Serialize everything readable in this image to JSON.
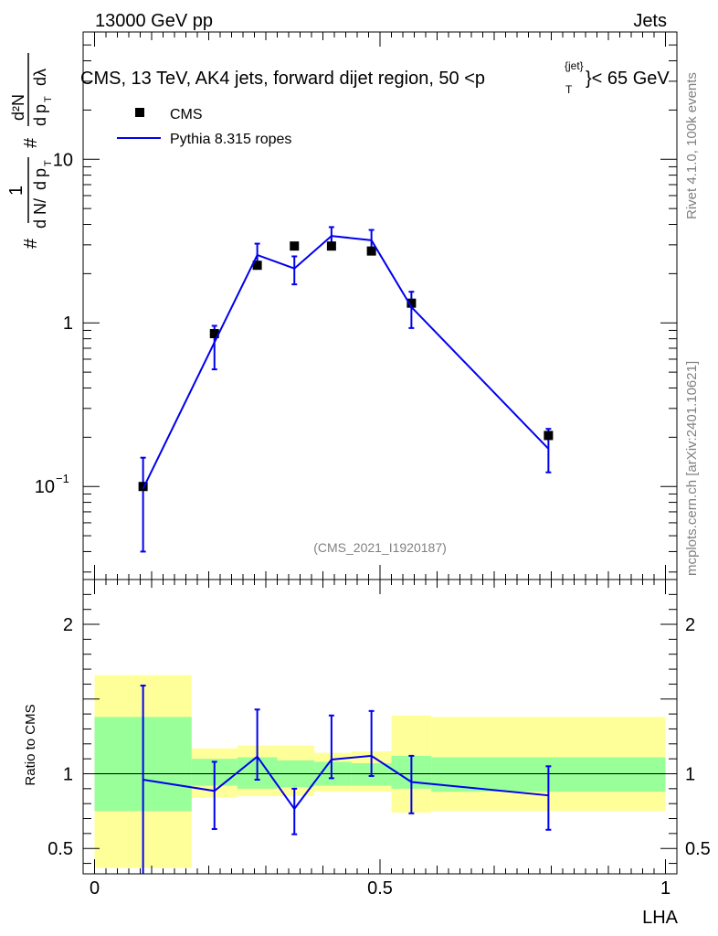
{
  "header": {
    "energy_label": "13000 GeV pp",
    "category_label": "Jets"
  },
  "side_labels": {
    "rivet": "Rivet 4.1.0,  100k events",
    "source": "mcplots.cern.ch [arXiv:2401.10621]"
  },
  "axis_symbols": {
    "hash": "#",
    "one": "1",
    "dN": "d N",
    "slash": "/",
    "d": "d",
    "p": "p",
    "T": "T",
    "d2N": "d²N",
    "dlambda": "dλ"
  },
  "chart_data": {
    "type": "line",
    "title": "CMS, 13 TeV, AK4 jets, forward dijet region, 50 <p_T^{jet}< 65 GeV",
    "title_parts": {
      "main": "CMS, 13 TeV, AK4 jets, forward dijet region, 50 <p",
      "sub": "T",
      "sup": "{jet}",
      "tail": "}< 65 GeV"
    },
    "analysis_id": "(CMS_2021_I1920187)",
    "xlabel": "LHA",
    "xlim": [
      -0.02,
      1.02
    ],
    "x_ticks": [
      {
        "value": 0,
        "label": "0"
      },
      {
        "value": 0.5,
        "label": "0.5"
      },
      {
        "value": 1,
        "label": "1"
      }
    ],
    "main": {
      "yscale": "log",
      "ylim": [
        0.027,
        60
      ],
      "y_ticks": [
        {
          "value": 0.1,
          "label": "10",
          "exp": "−1"
        },
        {
          "value": 1,
          "label": "1",
          "exp": ""
        },
        {
          "value": 10,
          "label": "10",
          "exp": ""
        }
      ],
      "legend": {
        "position": "top-left",
        "entries": [
          {
            "name": "CMS",
            "style": "square-marker"
          },
          {
            "name": "Pythia 8.315 ropes",
            "style": "line"
          }
        ]
      },
      "series": [
        {
          "name": "CMS",
          "x": [
            0.085,
            0.21,
            0.285,
            0.35,
            0.415,
            0.485,
            0.555,
            0.795
          ],
          "y": [
            0.1,
            0.86,
            2.25,
            2.95,
            2.95,
            2.75,
            1.32,
            0.205
          ]
        },
        {
          "name": "Pythia 8.315 ropes",
          "color": "#0000ee",
          "x": [
            0.085,
            0.21,
            0.285,
            0.35,
            0.415,
            0.485,
            0.555,
            0.795
          ],
          "y": [
            0.097,
            0.76,
            2.6,
            2.15,
            3.4,
            3.2,
            1.25,
            0.17
          ],
          "err_lo": [
            0.04,
            0.52,
            2.2,
            1.72,
            2.95,
            2.8,
            0.93,
            0.122
          ],
          "err_hi": [
            0.15,
            0.96,
            3.05,
            2.55,
            3.85,
            3.7,
            1.55,
            0.225
          ]
        }
      ]
    },
    "ratio": {
      "ylabel": "Ratio to CMS",
      "ylim": [
        0.33,
        2.3
      ],
      "y_ticks": [
        {
          "value": 0.5,
          "label": "0.5"
        },
        {
          "value": 1,
          "label": "1"
        },
        {
          "value": 2,
          "label": "2"
        }
      ],
      "reference_line": 1,
      "bands": [
        {
          "x0": 0.0,
          "x1": 0.17,
          "inner": [
            0.75,
            1.38
          ],
          "outer": [
            0.37,
            1.66
          ]
        },
        {
          "x0": 0.17,
          "x1": 0.25,
          "inner": [
            0.92,
            1.1
          ],
          "outer": [
            0.84,
            1.17
          ]
        },
        {
          "x0": 0.25,
          "x1": 0.32,
          "inner": [
            0.9,
            1.11
          ],
          "outer": [
            0.85,
            1.19
          ]
        },
        {
          "x0": 0.32,
          "x1": 0.385,
          "inner": [
            0.91,
            1.09
          ],
          "outer": [
            0.85,
            1.19
          ]
        },
        {
          "x0": 0.385,
          "x1": 0.45,
          "inner": [
            0.92,
            1.08
          ],
          "outer": [
            0.88,
            1.14
          ]
        },
        {
          "x0": 0.45,
          "x1": 0.52,
          "inner": [
            0.92,
            1.07
          ],
          "outer": [
            0.88,
            1.15
          ]
        },
        {
          "x0": 0.52,
          "x1": 0.59,
          "inner": [
            0.9,
            1.12
          ],
          "outer": [
            0.74,
            1.39
          ]
        },
        {
          "x0": 0.59,
          "x1": 1.0,
          "inner": [
            0.88,
            1.11
          ],
          "outer": [
            0.75,
            1.38
          ]
        }
      ],
      "series": [
        {
          "name": "Pythia 8.315 ropes",
          "color": "#0000ee",
          "x": [
            0.085,
            0.21,
            0.285,
            0.35,
            0.415,
            0.485,
            0.555,
            0.795
          ],
          "y": [
            0.96,
            0.885,
            1.115,
            0.765,
            1.095,
            1.12,
            0.945,
            0.855
          ],
          "err_lo": [
            0.3,
            0.63,
            0.96,
            0.595,
            0.97,
            0.985,
            0.735,
            0.625
          ],
          "err_hi": [
            1.59,
            1.08,
            1.43,
            0.9,
            1.39,
            1.42,
            1.12,
            1.05
          ]
        }
      ]
    },
    "colors": {
      "inner_band": "#99ff99",
      "outer_band": "#ffff99",
      "data_marker": "#000000",
      "mc_line": "#0000ee"
    }
  }
}
